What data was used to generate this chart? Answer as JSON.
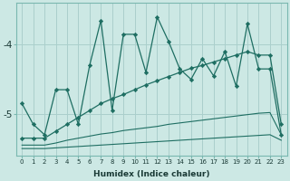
{
  "xlabel": "Humidex (Indice chaleur)",
  "background_color": "#cce8e4",
  "grid_color": "#aacfcc",
  "line_color": "#1e6e62",
  "x": [
    0,
    1,
    2,
    3,
    4,
    5,
    6,
    7,
    8,
    9,
    10,
    11,
    12,
    13,
    14,
    15,
    16,
    17,
    18,
    19,
    20,
    21,
    22,
    23
  ],
  "line1": [
    -4.85,
    -5.15,
    -5.3,
    -4.65,
    -4.65,
    -5.15,
    -4.3,
    -3.65,
    -4.95,
    -3.85,
    -3.85,
    -4.4,
    -3.6,
    -3.95,
    -4.35,
    -4.5,
    -4.2,
    -4.45,
    -4.1,
    -4.6,
    -3.7,
    -4.35,
    -4.35,
    -5.3
  ],
  "line2": [
    -5.35,
    -5.35,
    -5.35,
    -5.25,
    -5.15,
    -5.05,
    -4.95,
    -4.85,
    -4.78,
    -4.72,
    -4.65,
    -4.58,
    -4.52,
    -4.46,
    -4.4,
    -4.34,
    -4.3,
    -4.25,
    -4.2,
    -4.15,
    -4.1,
    -4.15,
    -4.15,
    -5.15
  ],
  "line3": [
    -5.45,
    -5.45,
    -5.45,
    -5.42,
    -5.38,
    -5.35,
    -5.32,
    -5.29,
    -5.27,
    -5.24,
    -5.22,
    -5.2,
    -5.18,
    -5.15,
    -5.13,
    -5.11,
    -5.09,
    -5.07,
    -5.05,
    -5.03,
    -5.01,
    -4.99,
    -4.98,
    -5.3
  ],
  "line4": [
    -5.5,
    -5.5,
    -5.5,
    -5.49,
    -5.48,
    -5.47,
    -5.46,
    -5.45,
    -5.44,
    -5.43,
    -5.42,
    -5.41,
    -5.4,
    -5.39,
    -5.38,
    -5.37,
    -5.36,
    -5.35,
    -5.34,
    -5.33,
    -5.32,
    -5.31,
    -5.3,
    -5.38
  ],
  "yticks": [
    -4,
    -5
  ],
  "ylim": [
    -5.6,
    -3.4
  ],
  "xlim": [
    -0.5,
    23.5
  ]
}
